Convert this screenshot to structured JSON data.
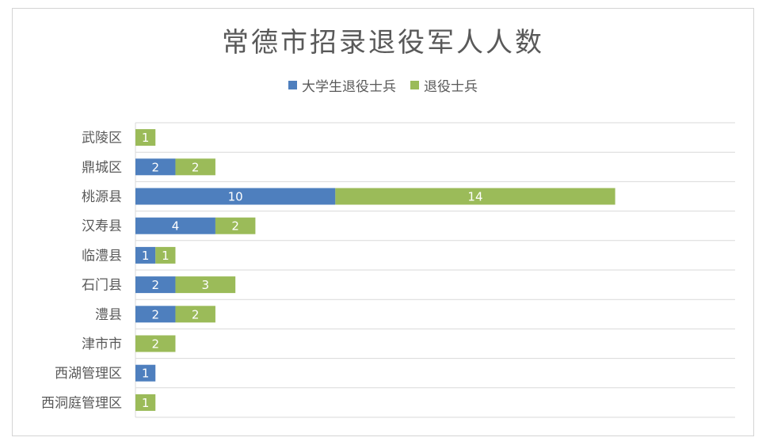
{
  "chart_data": {
    "type": "bar",
    "orientation": "horizontal",
    "stacked": true,
    "title": "常德市招录退役军人人数",
    "categories": [
      "武陵区",
      "鼎城区",
      "桃源县",
      "汉寿县",
      "临澧县",
      "石门县",
      "澧县",
      "津市市",
      "西湖管理区",
      "西洞庭管理区"
    ],
    "series": [
      {
        "name": "大学生退役士兵",
        "color": "#4e7fbe",
        "values": [
          0,
          2,
          10,
          4,
          1,
          2,
          2,
          0,
          1,
          0
        ]
      },
      {
        "name": "退役士兵",
        "color": "#9bbb59",
        "values": [
          1,
          2,
          14,
          2,
          1,
          3,
          2,
          2,
          0,
          1
        ]
      }
    ],
    "xlim": [
      0,
      30
    ],
    "grid": true,
    "legend_position": "top",
    "data_labels": true
  }
}
